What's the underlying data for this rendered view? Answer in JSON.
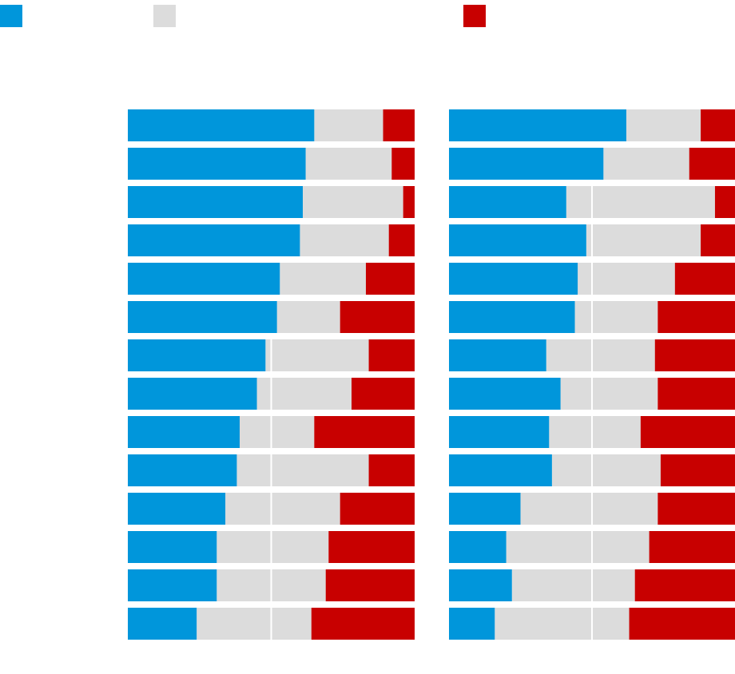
{
  "chart_data": [
    {
      "type": "bar",
      "orientation": "horizontal",
      "stacked": true,
      "categories": [
        null,
        null,
        null,
        null,
        null,
        null,
        null,
        null,
        null,
        null,
        null,
        null,
        null,
        null
      ],
      "series": [
        {
          "color": "#0096db",
          "values": [
            65,
            62,
            61,
            60,
            53,
            52,
            48,
            45,
            39,
            38,
            34,
            31,
            31,
            24
          ]
        },
        {
          "color": "#dcdcdc",
          "values": [
            24,
            30,
            35,
            31,
            30,
            22,
            36,
            33,
            26,
            46,
            40,
            39,
            38,
            40
          ]
        },
        {
          "color": "#c80000",
          "values": [
            11,
            8,
            4,
            9,
            17,
            26,
            16,
            22,
            35,
            16,
            26,
            30,
            31,
            36
          ]
        }
      ],
      "xlim": [
        0,
        100
      ],
      "xticks": [
        50
      ],
      "grid": true
    },
    {
      "type": "bar",
      "orientation": "horizontal",
      "stacked": true,
      "categories": [
        null,
        null,
        null,
        null,
        null,
        null,
        null,
        null,
        null,
        null,
        null,
        null,
        null,
        null
      ],
      "series": [
        {
          "color": "#0096db",
          "values": [
            62,
            54,
            41,
            48,
            45,
            44,
            34,
            39,
            35,
            36,
            25,
            20,
            22,
            16
          ]
        },
        {
          "color": "#dcdcdc",
          "values": [
            26,
            30,
            52,
            40,
            34,
            29,
            38,
            34,
            32,
            38,
            48,
            50,
            43,
            47
          ]
        },
        {
          "color": "#c80000",
          "values": [
            12,
            16,
            7,
            12,
            21,
            27,
            28,
            27,
            33,
            26,
            27,
            30,
            35,
            37
          ]
        }
      ],
      "xlim": [
        0,
        100
      ],
      "xticks": [
        50
      ],
      "grid": true
    }
  ]
}
